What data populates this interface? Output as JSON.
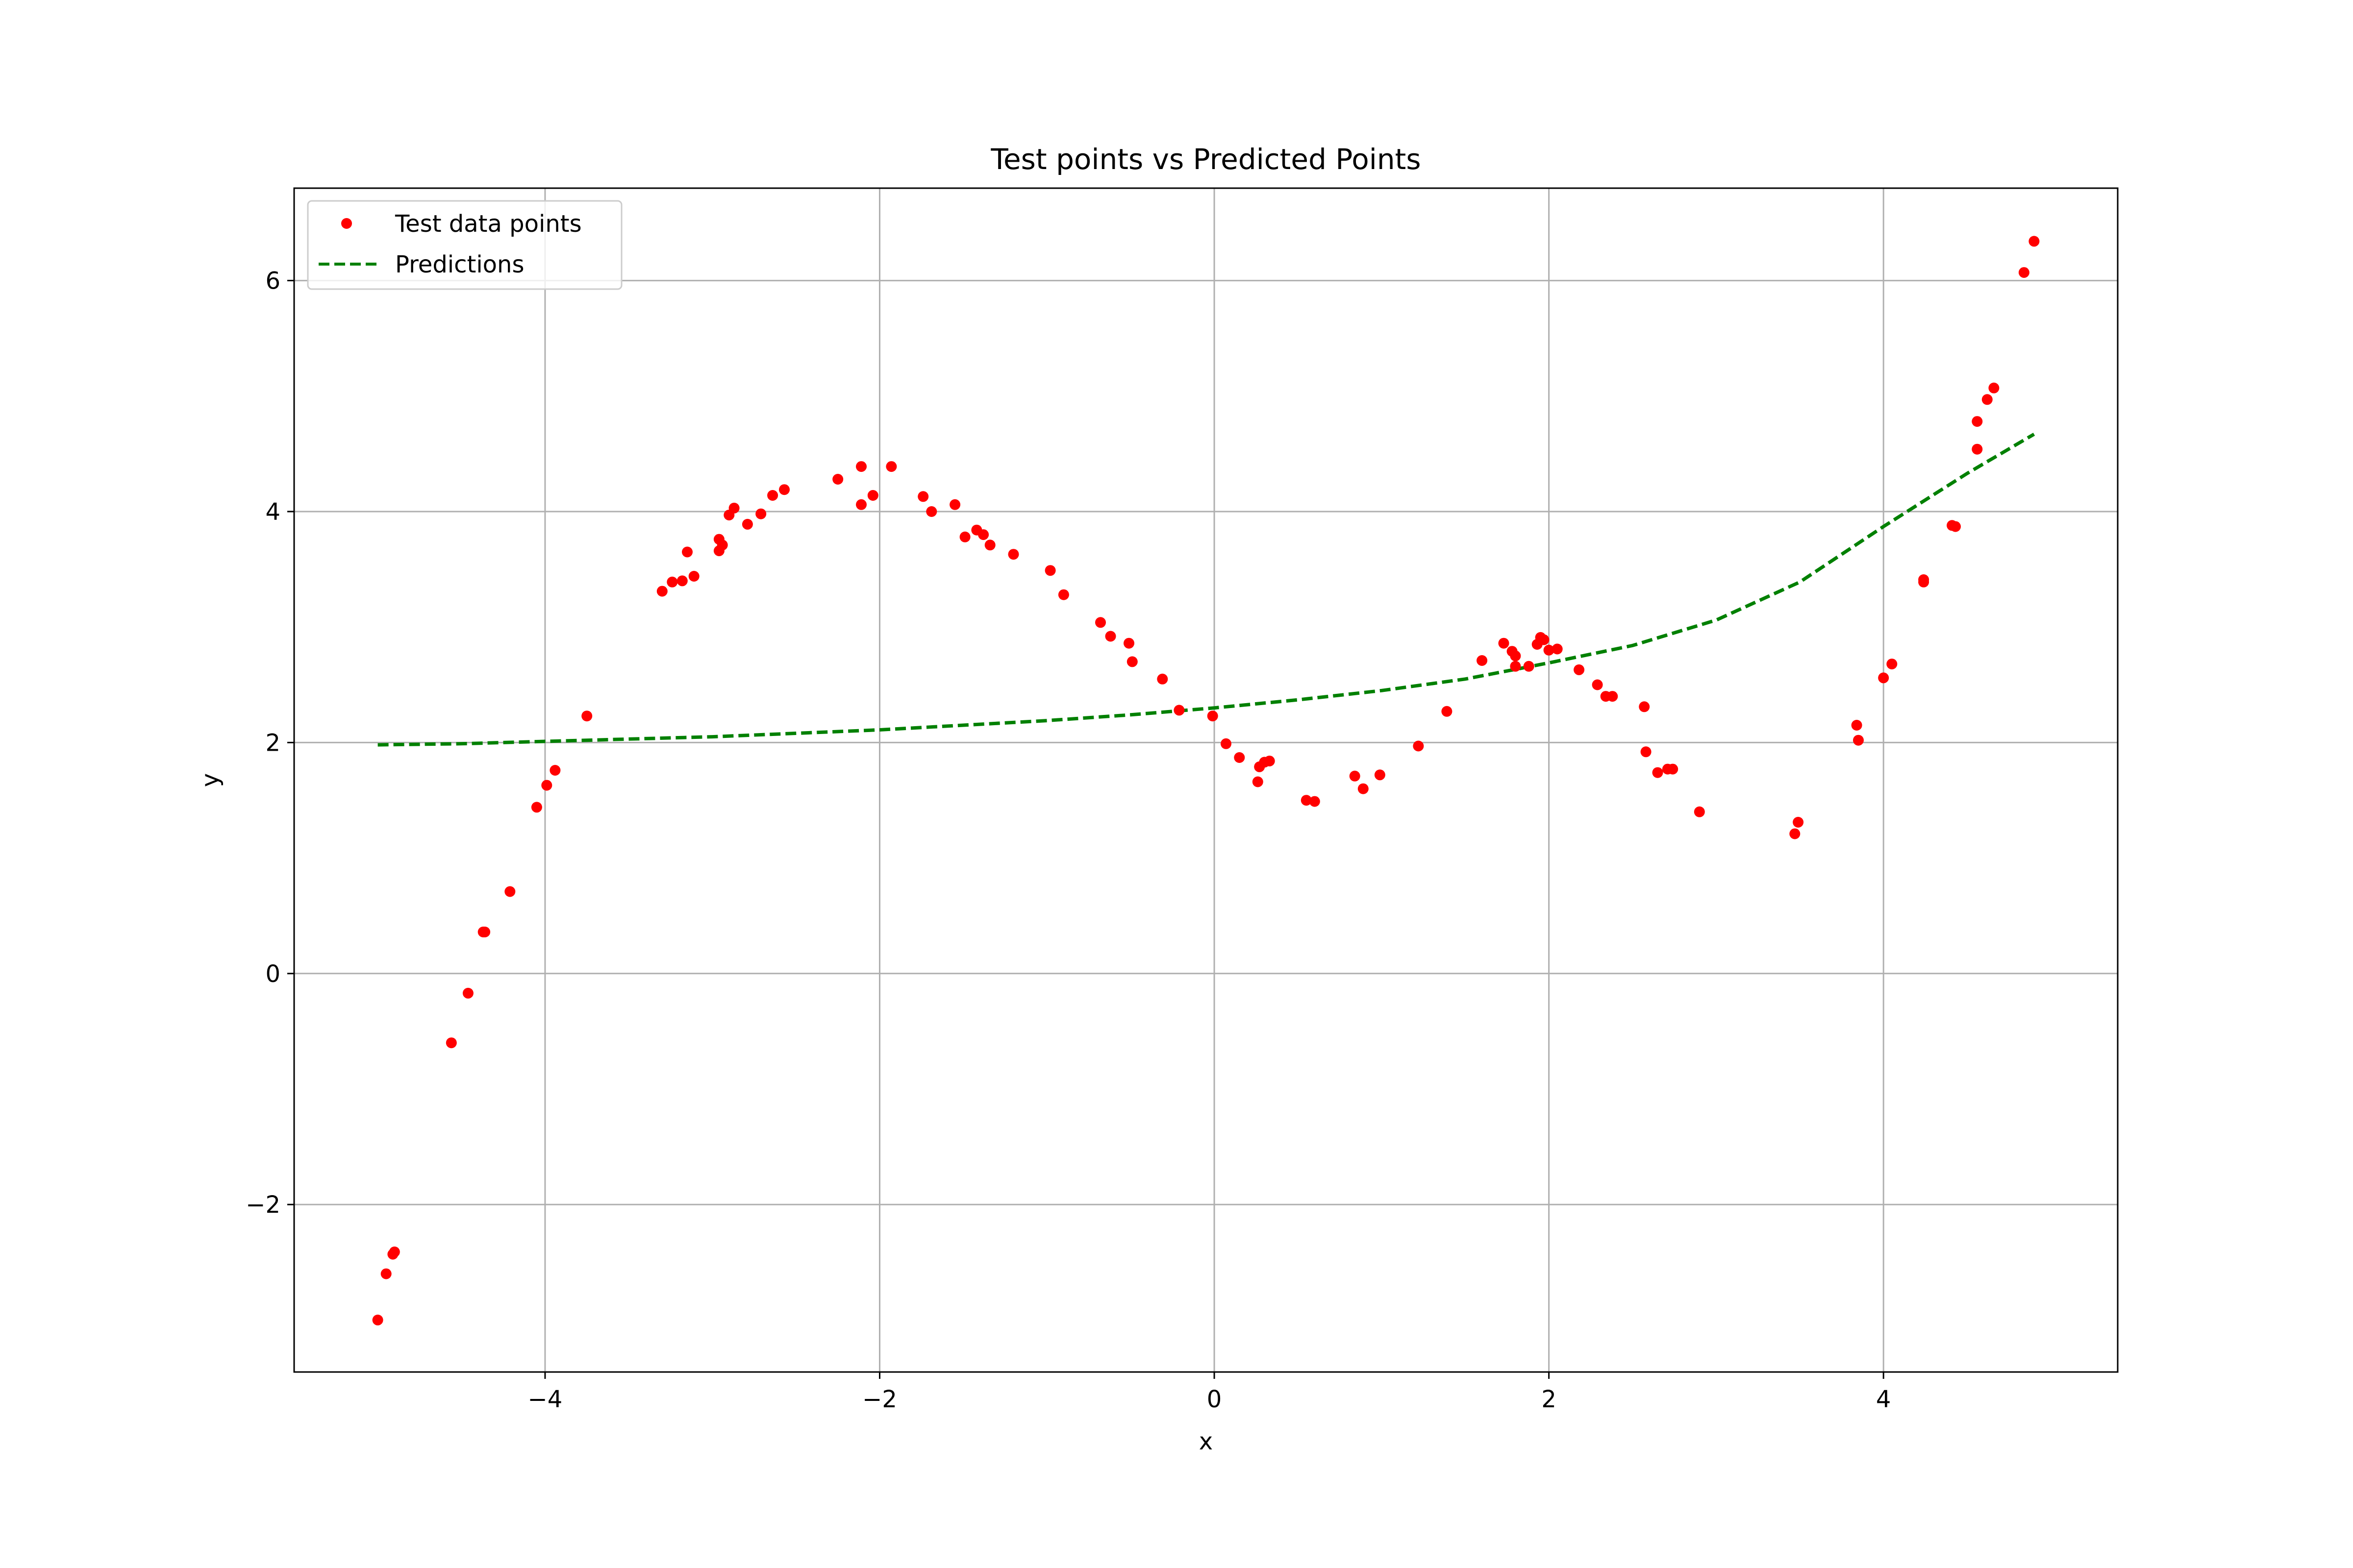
{
  "chart_data": {
    "type": "scatter",
    "title": "Test points vs Predicted Points",
    "xlabel": "x",
    "ylabel": "y",
    "xlim": [
      -5.5,
      5.4
    ],
    "ylim": [
      -3.45,
      6.8
    ],
    "xticks": [
      -4,
      -2,
      0,
      2,
      4
    ],
    "yticks": [
      -2,
      0,
      2,
      4,
      6
    ],
    "xtick_labels": [
      "−4",
      "−2",
      "0",
      "2",
      "4"
    ],
    "ytick_labels": [
      "−2",
      "0",
      "2",
      "4",
      "6"
    ],
    "grid": true,
    "legend_position": "top-left",
    "series": [
      {
        "name": "Test data points",
        "kind": "scatter",
        "color": "#ff0000",
        "points": [
          [
            -5.0,
            -3.0
          ],
          [
            -4.95,
            -2.6
          ],
          [
            -4.91,
            -2.43
          ],
          [
            -4.9,
            -2.41
          ],
          [
            -4.56,
            -0.6
          ],
          [
            -4.46,
            -0.17
          ],
          [
            -4.37,
            0.36
          ],
          [
            -4.36,
            0.36
          ],
          [
            -4.21,
            0.71
          ],
          [
            -4.05,
            1.44
          ],
          [
            -3.99,
            1.63
          ],
          [
            -3.94,
            1.76
          ],
          [
            -3.75,
            2.23
          ],
          [
            -3.3,
            3.31
          ],
          [
            -3.24,
            3.39
          ],
          [
            -3.18,
            3.4
          ],
          [
            -3.15,
            3.65
          ],
          [
            -3.11,
            3.44
          ],
          [
            -2.96,
            3.66
          ],
          [
            -2.96,
            3.76
          ],
          [
            -2.94,
            3.71
          ],
          [
            -2.9,
            3.97
          ],
          [
            -2.87,
            4.03
          ],
          [
            -2.79,
            3.89
          ],
          [
            -2.71,
            3.98
          ],
          [
            -2.64,
            4.14
          ],
          [
            -2.57,
            4.19
          ],
          [
            -2.25,
            4.28
          ],
          [
            -2.11,
            4.39
          ],
          [
            -2.11,
            4.06
          ],
          [
            -2.04,
            4.14
          ],
          [
            -1.93,
            4.39
          ],
          [
            -1.74,
            4.13
          ],
          [
            -1.69,
            4.0
          ],
          [
            -1.55,
            4.06
          ],
          [
            -1.49,
            3.78
          ],
          [
            -1.42,
            3.84
          ],
          [
            -1.38,
            3.8
          ],
          [
            -1.34,
            3.71
          ],
          [
            -1.2,
            3.63
          ],
          [
            -0.98,
            3.49
          ],
          [
            -0.9,
            3.28
          ],
          [
            -0.68,
            3.04
          ],
          [
            -0.62,
            2.92
          ],
          [
            -0.51,
            2.86
          ],
          [
            -0.49,
            2.7
          ],
          [
            -0.31,
            2.55
          ],
          [
            -0.21,
            2.28
          ],
          [
            -0.01,
            2.23
          ],
          [
            0.07,
            1.99
          ],
          [
            0.15,
            1.87
          ],
          [
            0.26,
            1.66
          ],
          [
            0.27,
            1.79
          ],
          [
            0.3,
            1.83
          ],
          [
            0.33,
            1.84
          ],
          [
            0.55,
            1.5
          ],
          [
            0.6,
            1.49
          ],
          [
            0.84,
            1.71
          ],
          [
            0.89,
            1.6
          ],
          [
            0.99,
            1.72
          ],
          [
            1.22,
            1.97
          ],
          [
            1.39,
            2.27
          ],
          [
            1.6,
            2.71
          ],
          [
            1.73,
            2.86
          ],
          [
            1.78,
            2.79
          ],
          [
            1.8,
            2.75
          ],
          [
            1.8,
            2.66
          ],
          [
            1.88,
            2.66
          ],
          [
            1.93,
            2.85
          ],
          [
            1.95,
            2.91
          ],
          [
            1.97,
            2.89
          ],
          [
            2.0,
            2.8
          ],
          [
            2.05,
            2.81
          ],
          [
            2.18,
            2.63
          ],
          [
            2.29,
            2.5
          ],
          [
            2.34,
            2.4
          ],
          [
            2.38,
            2.4
          ],
          [
            2.57,
            2.31
          ],
          [
            2.58,
            1.92
          ],
          [
            2.65,
            1.74
          ],
          [
            2.71,
            1.77
          ],
          [
            2.74,
            1.77
          ],
          [
            2.9,
            1.4
          ],
          [
            3.47,
            1.21
          ],
          [
            3.49,
            1.31
          ],
          [
            3.84,
            2.15
          ],
          [
            3.85,
            2.02
          ],
          [
            4.0,
            2.56
          ],
          [
            4.05,
            2.68
          ],
          [
            4.24,
            3.41
          ],
          [
            4.24,
            3.39
          ],
          [
            4.41,
            3.88
          ],
          [
            4.43,
            3.87
          ],
          [
            4.56,
            4.54
          ],
          [
            4.56,
            4.78
          ],
          [
            4.62,
            4.97
          ],
          [
            4.66,
            5.07
          ],
          [
            4.84,
            6.07
          ],
          [
            4.9,
            6.34
          ]
        ]
      },
      {
        "name": "Predictions",
        "kind": "line",
        "style": "dashed",
        "color": "#008000",
        "points": [
          [
            -5.0,
            1.98
          ],
          [
            -4.5,
            1.99
          ],
          [
            -4.0,
            2.01
          ],
          [
            -3.5,
            2.03
          ],
          [
            -3.0,
            2.05
          ],
          [
            -2.5,
            2.08
          ],
          [
            -2.0,
            2.11
          ],
          [
            -1.5,
            2.15
          ],
          [
            -1.0,
            2.19
          ],
          [
            -0.5,
            2.24
          ],
          [
            0.0,
            2.3
          ],
          [
            0.5,
            2.37
          ],
          [
            1.0,
            2.45
          ],
          [
            1.5,
            2.55
          ],
          [
            2.0,
            2.69
          ],
          [
            2.5,
            2.84
          ],
          [
            3.0,
            3.06
          ],
          [
            3.5,
            3.39
          ],
          [
            4.0,
            3.87
          ],
          [
            4.5,
            4.33
          ],
          [
            4.9,
            4.67
          ]
        ]
      }
    ]
  }
}
